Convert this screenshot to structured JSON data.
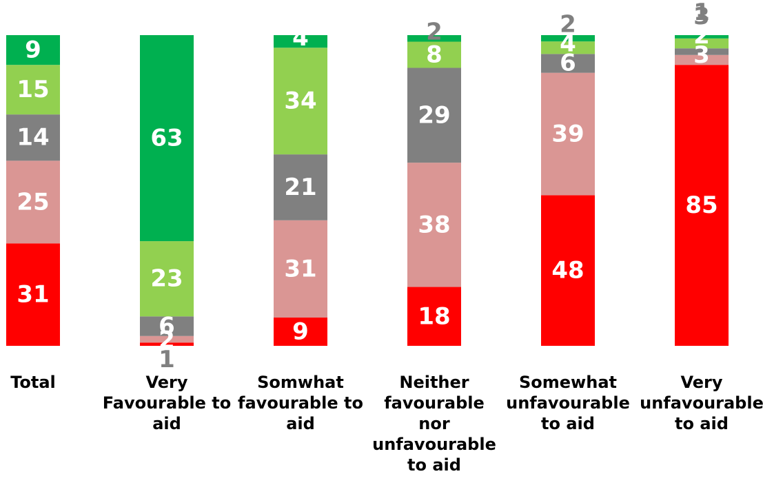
{
  "chart_data": {
    "type": "bar",
    "stacked": true,
    "percent_stacked": true,
    "categories": [
      [
        "Total"
      ],
      [
        "Very",
        "Favourable to",
        "aid"
      ],
      [
        "Somwhat",
        "favourable to",
        "aid"
      ],
      [
        "Neither",
        "favourable",
        "nor",
        "unfavourable",
        "to aid"
      ],
      [
        "Somewhat",
        "unfavourable",
        "to aid"
      ],
      [
        "Very",
        "unfavourable",
        "to aid"
      ]
    ],
    "series": [
      {
        "color": "#ff0000",
        "values": [
          31,
          1,
          9,
          18,
          48,
          85
        ]
      },
      {
        "color": "#da9694",
        "values": [
          25,
          2,
          31,
          38,
          39,
          3
        ]
      },
      {
        "color": "#808080",
        "values": [
          14,
          6,
          21,
          29,
          6,
          2
        ]
      },
      {
        "color": "#92d050",
        "values": [
          15,
          23,
          34,
          8,
          4,
          3
        ]
      },
      {
        "color": "#00b050",
        "values": [
          9,
          63,
          4,
          2,
          2,
          1
        ]
      }
    ],
    "ylim": [
      0,
      100
    ],
    "grid": false,
    "legend": "none"
  }
}
